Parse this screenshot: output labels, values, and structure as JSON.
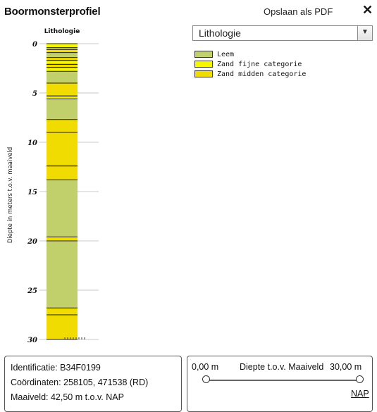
{
  "header": {
    "title": "Boormonsterprofiel",
    "pdf_label": "Opslaan als PDF",
    "close_glyph": "✕"
  },
  "select": {
    "value": "Lithologie",
    "arrow": "▼"
  },
  "legend": [
    {
      "label": "Leem",
      "color": "#c2d06b"
    },
    {
      "label": "Zand fijne categorie",
      "color": "#f7f700"
    },
    {
      "label": "Zand midden categorie",
      "color": "#f0dc00"
    }
  ],
  "chart_data": {
    "type": "column",
    "column_label": "Lithologie",
    "ylabel": "Diepte in meters t.o.v. maaiveld",
    "yticks": [
      0,
      5,
      10,
      15,
      20,
      25,
      30
    ],
    "ylim": [
      0,
      30
    ],
    "grid": true,
    "colors": {
      "Leem": "#c2d06b",
      "Zand fijne categorie": "#f7f700",
      "Zand midden categorie": "#f0dc00"
    },
    "layers": [
      {
        "top": 0.0,
        "bottom": 0.4,
        "lith": "Zand fijne categorie"
      },
      {
        "top": 0.4,
        "bottom": 0.6,
        "lith": "Leem"
      },
      {
        "top": 0.6,
        "bottom": 0.9,
        "lith": "Zand midden categorie"
      },
      {
        "top": 0.9,
        "bottom": 1.4,
        "lith": "Leem"
      },
      {
        "top": 1.4,
        "bottom": 1.7,
        "lith": "Zand midden categorie"
      },
      {
        "top": 1.7,
        "bottom": 2.1,
        "lith": "Zand fijne categorie"
      },
      {
        "top": 2.1,
        "bottom": 2.4,
        "lith": "Zand midden categorie"
      },
      {
        "top": 2.4,
        "bottom": 2.8,
        "lith": "Zand fijne categorie"
      },
      {
        "top": 2.8,
        "bottom": 4.0,
        "lith": "Leem"
      },
      {
        "top": 4.0,
        "bottom": 5.3,
        "lith": "Zand midden categorie"
      },
      {
        "top": 5.3,
        "bottom": 5.6,
        "lith": "Zand fijne categorie"
      },
      {
        "top": 5.6,
        "bottom": 7.7,
        "lith": "Leem"
      },
      {
        "top": 7.7,
        "bottom": 9.0,
        "lith": "Zand midden categorie"
      },
      {
        "top": 9.0,
        "bottom": 12.4,
        "lith": "Zand midden categorie"
      },
      {
        "top": 12.4,
        "bottom": 13.8,
        "lith": "Zand midden categorie"
      },
      {
        "top": 13.8,
        "bottom": 19.6,
        "lith": "Leem"
      },
      {
        "top": 19.6,
        "bottom": 20.0,
        "lith": "Zand midden categorie"
      },
      {
        "top": 20.0,
        "bottom": 26.8,
        "lith": "Leem"
      },
      {
        "top": 26.8,
        "bottom": 27.5,
        "lith": "Zand midden categorie"
      },
      {
        "top": 27.5,
        "bottom": 30.0,
        "lith": "Zand midden categorie"
      }
    ]
  },
  "info": {
    "identificatie": "Identificatie: B34F0199",
    "coordinaten": "Coördinaten: 258105, 471538 (RD)",
    "maaiveld": "Maaiveld: 42,50 m t.o.v. NAP"
  },
  "depth": {
    "min": "0,00 m",
    "label": "Diepte t.o.v. Maaiveld",
    "max": "30,00 m",
    "nap": "NAP",
    "range": [
      0,
      30
    ],
    "value_min": 0,
    "value_max": 30
  }
}
